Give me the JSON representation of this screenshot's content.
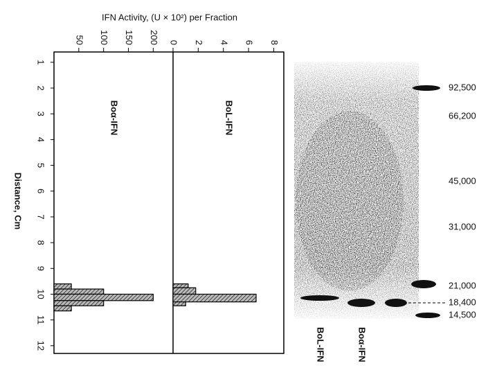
{
  "figure": {
    "xlabel": "IFN Activity, (U × 10²) per Fraction",
    "ylabel": "Distance, Cm"
  },
  "chart_data": [
    {
      "type": "hbar-histogram",
      "label": "Boα-IFN",
      "color": "#666666",
      "bins": [
        9.6,
        9.8,
        10.0,
        10.25,
        10.45,
        10.65
      ],
      "values": [
        35,
        100,
        200,
        100,
        35
      ],
      "xlim": [
        0,
        240
      ],
      "xticks": [
        50,
        100,
        150,
        200
      ],
      "ylim": [
        0.6,
        12.3
      ],
      "yticks": [
        1,
        2,
        3,
        4,
        5,
        6,
        7,
        8,
        9,
        10,
        11,
        12
      ]
    },
    {
      "type": "hbar-histogram",
      "label": "BoL-IFN",
      "color": "#777777",
      "bins": [
        9.6,
        9.75,
        10.0,
        10.3,
        10.45
      ],
      "values": [
        1.2,
        1.8,
        6.6,
        1.0
      ],
      "xlim": [
        0,
        8.8
      ],
      "xticks": [
        0,
        2,
        4,
        6,
        8
      ],
      "ylim": [
        0.6,
        12.3
      ]
    }
  ],
  "gel": {
    "markers": [
      "92,500",
      "66,200",
      "45,000",
      "31,000",
      "21,000",
      "18,400",
      "14,500"
    ],
    "lanes": [
      "BoL-IFN",
      "Boα-IFN"
    ]
  }
}
